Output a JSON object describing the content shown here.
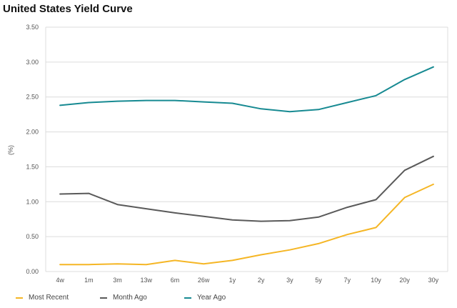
{
  "chart_data": {
    "type": "line",
    "title": "United States Yield Curve",
    "ylabel": "(%)",
    "xlabel": "",
    "categories": [
      "4w",
      "1m",
      "3m",
      "13w",
      "6m",
      "26w",
      "1y",
      "2y",
      "3y",
      "5y",
      "7y",
      "10y",
      "20y",
      "30y"
    ],
    "ylim": [
      0,
      3.5
    ],
    "yticks": [
      "0.00",
      "0.50",
      "1.00",
      "1.50",
      "2.00",
      "2.50",
      "3.00",
      "3.50"
    ],
    "grid": "horizontal",
    "legend_position": "bottom",
    "series": [
      {
        "name": "Most Recent",
        "color": "#f5b625",
        "values": [
          0.1,
          0.1,
          0.11,
          0.1,
          0.16,
          0.11,
          0.16,
          0.24,
          0.31,
          0.4,
          0.53,
          0.63,
          1.06,
          1.25
        ]
      },
      {
        "name": "Month Ago",
        "color": "#5a5a5a",
        "values": [
          1.11,
          1.12,
          0.96,
          0.9,
          0.84,
          0.79,
          0.74,
          0.72,
          0.73,
          0.78,
          0.92,
          1.03,
          1.45,
          1.65
        ]
      },
      {
        "name": "Year Ago",
        "color": "#178a92",
        "values": [
          2.38,
          2.42,
          2.44,
          2.45,
          2.45,
          2.43,
          2.41,
          2.33,
          2.29,
          2.32,
          2.42,
          2.52,
          2.75,
          2.93
        ]
      }
    ]
  }
}
